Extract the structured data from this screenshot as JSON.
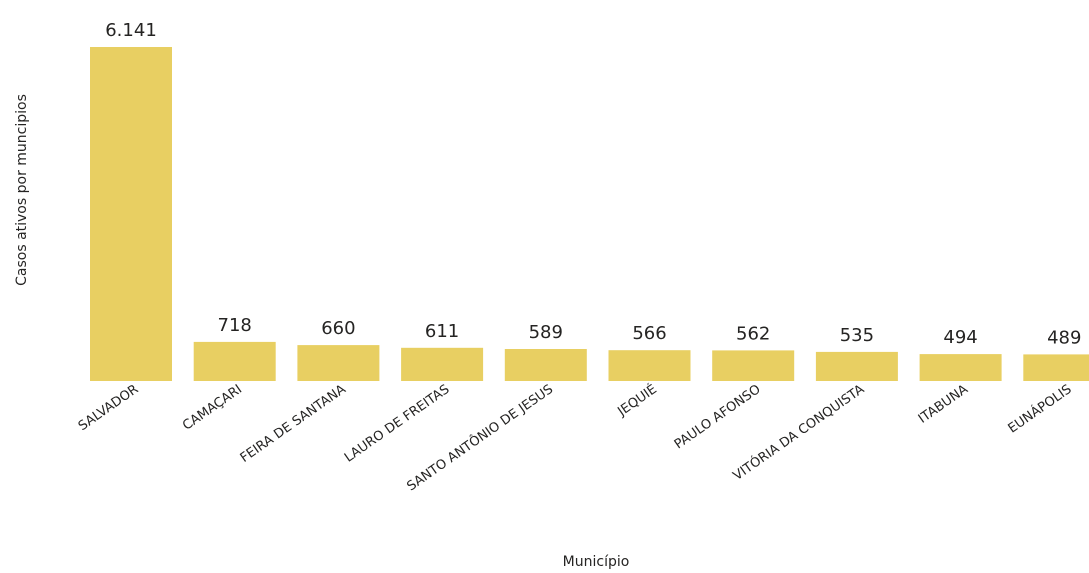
{
  "chart_data": {
    "type": "bar",
    "title": "",
    "xlabel": "Município",
    "ylabel": "Casos ativos por muncipios",
    "categories": [
      "SALVADOR",
      "CAMAÇARI",
      "FEIRA DE SANTANA",
      "LAURO DE FREITAS",
      "SANTO ANTÔNIO DE JESUS",
      "JEQUIÉ",
      "PAULO AFONSO",
      "VITÓRIA DA CONQUISTA",
      "ITABUNA",
      "EUNÁPOLIS"
    ],
    "values": [
      6141,
      718,
      660,
      611,
      589,
      566,
      562,
      535,
      494,
      489
    ],
    "value_labels": [
      "6.141",
      "718",
      "660",
      "611",
      "589",
      "566",
      "562",
      "535",
      "494",
      "489"
    ],
    "ylim": [
      0,
      6141
    ],
    "grid": false,
    "legend": "none",
    "colors": {
      "bar": "#E8CF62",
      "text": "#252423"
    }
  }
}
